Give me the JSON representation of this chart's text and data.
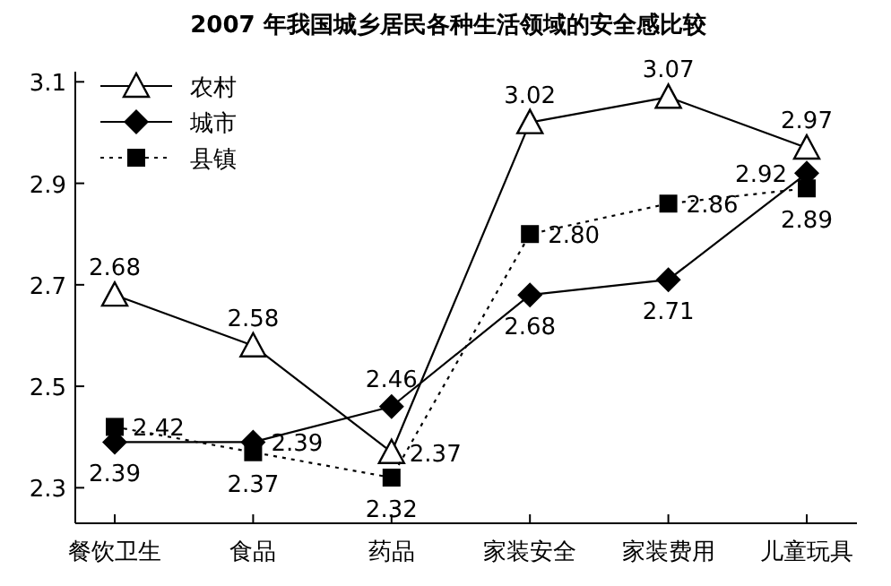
{
  "chart_data": {
    "type": "line",
    "title": "2007 年我国城乡居民各种生活领域的安全感比较",
    "categories": [
      "餐饮卫生",
      "食品",
      "药品",
      "家装安全",
      "家装费用",
      "儿童玩具"
    ],
    "series": [
      {
        "name": "农村",
        "color": "#000000",
        "marker": "triangle",
        "line_style": "solid",
        "values": [
          2.68,
          2.58,
          2.37,
          3.02,
          3.07,
          2.97
        ],
        "value_labels": [
          "2.68",
          "2.58",
          "2.37",
          "3.02",
          "3.07",
          "2.97"
        ]
      },
      {
        "name": "城市",
        "color": "#000000",
        "marker": "diamond",
        "line_style": "solid",
        "values": [
          2.39,
          2.39,
          2.46,
          2.68,
          2.71,
          2.92
        ],
        "value_labels": [
          "2.39",
          "2.39",
          "2.46",
          "2.68",
          "2.71",
          "2.92"
        ]
      },
      {
        "name": "县镇",
        "color": "#000000",
        "marker": "square",
        "line_style": "dotted",
        "values": [
          2.42,
          2.37,
          2.32,
          2.8,
          2.86,
          2.89
        ],
        "value_labels": [
          "2.42",
          "2.37",
          "2.32",
          "2.80",
          "2.86",
          "2.89"
        ]
      }
    ],
    "ylim": [
      2.23,
      3.12
    ],
    "yticks": [
      {
        "value": 2.3,
        "label": "2.3"
      },
      {
        "value": 2.5,
        "label": "2.5"
      },
      {
        "value": 2.7,
        "label": "2.7"
      },
      {
        "value": 2.9,
        "label": "2.9"
      },
      {
        "value": 3.1,
        "label": "3.1"
      }
    ],
    "legend": "top left",
    "grid": false
  }
}
